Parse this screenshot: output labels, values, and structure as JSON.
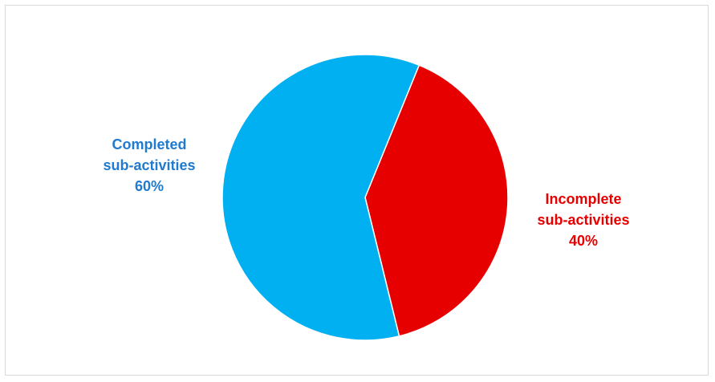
{
  "chart_data": {
    "type": "pie",
    "title": "",
    "legend": "none",
    "slices": [
      {
        "name": "Incomplete sub-activities",
        "value": 40,
        "label_lines": [
          "Incomplete",
          "sub-activities",
          "40%"
        ],
        "color": "#e60000",
        "label_color": "#e60000"
      },
      {
        "name": "Completed sub-activities",
        "value": 60,
        "label_lines": [
          "Completed",
          "sub-activities",
          "60%"
        ],
        "color": "#00b0f0",
        "label_color": "#1f7ad0"
      }
    ]
  }
}
